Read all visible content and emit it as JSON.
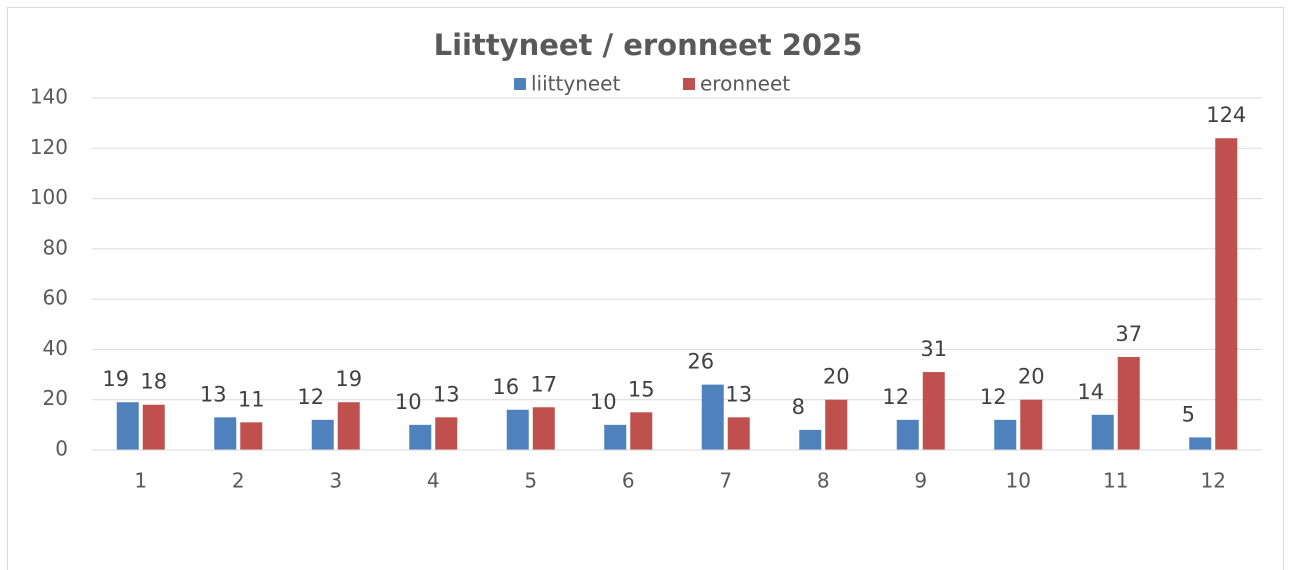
{
  "chart_data": {
    "type": "bar",
    "title": "Liittyneet / eronneet 2025",
    "categories": [
      1,
      2,
      3,
      4,
      5,
      6,
      7,
      8,
      9,
      10,
      11,
      12
    ],
    "series": [
      {
        "name": "liittyneet",
        "color": "#4f81bd",
        "values": [
          19,
          13,
          12,
          10,
          16,
          10,
          26,
          8,
          12,
          12,
          14,
          5
        ]
      },
      {
        "name": "eronneet",
        "color": "#c0504d",
        "values": [
          18,
          11,
          19,
          13,
          17,
          15,
          13,
          20,
          31,
          20,
          37,
          124
        ]
      }
    ],
    "ylim": [
      0,
      140
    ],
    "yticks": [
      0,
      20,
      40,
      60,
      80,
      100,
      120,
      140
    ],
    "grid": true,
    "legend": "top"
  }
}
